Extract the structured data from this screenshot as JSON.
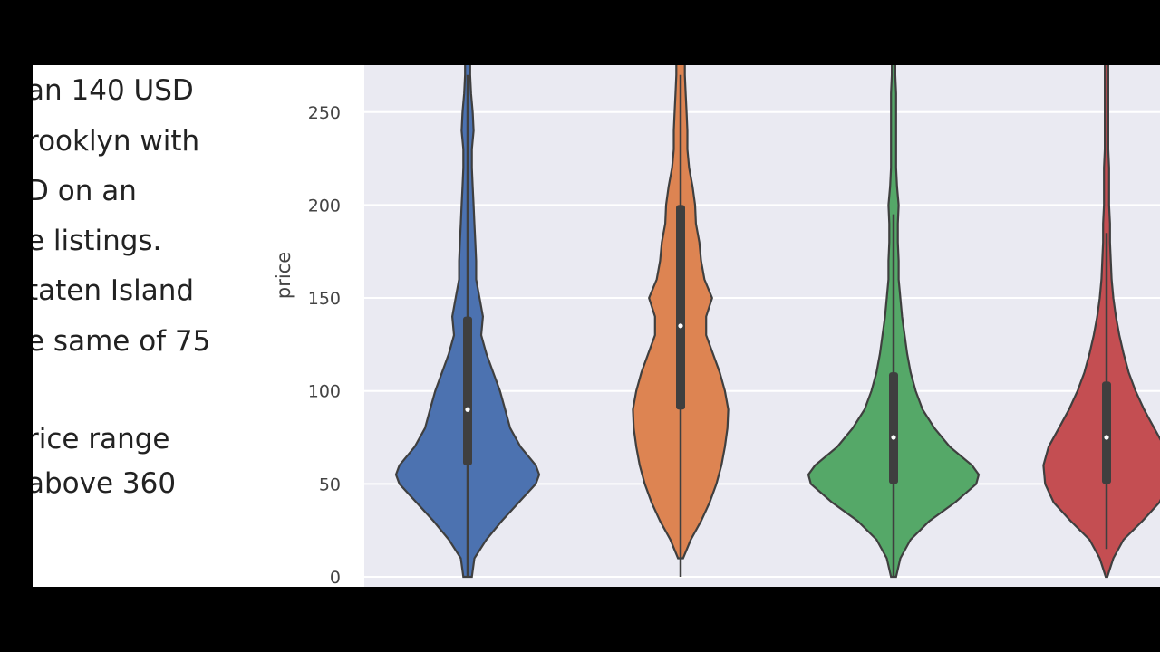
{
  "text_lines": [
    "an 140 USD",
    "rooklyn with",
    "D on an",
    "e listings.",
    "taten Island",
    "e same of 75",
    "",
    "rice range",
    "above 360"
  ],
  "colors": {
    "background": "#000000",
    "plot_background": "#eaeaf2",
    "grid": "#ffffff",
    "series": [
      "#4c72b0",
      "#dd8452",
      "#55a868",
      "#c44e52"
    ],
    "outline": "#3f3f3f"
  },
  "chart_data": {
    "type": "violin",
    "ylabel": "price",
    "yticks": [
      0,
      50,
      100,
      150,
      200,
      250
    ],
    "ylim": [
      0,
      260
    ],
    "grid": true,
    "series": [
      {
        "color": "#4c72b0",
        "median": 90,
        "q1": 60,
        "q3": 140,
        "whisker_low": 0,
        "whisker_high": 270,
        "density": [
          [
            0,
            0.05
          ],
          [
            10,
            0.08
          ],
          [
            20,
            0.22
          ],
          [
            30,
            0.4
          ],
          [
            40,
            0.6
          ],
          [
            50,
            0.8
          ],
          [
            55,
            0.84
          ],
          [
            60,
            0.8
          ],
          [
            70,
            0.62
          ],
          [
            80,
            0.5
          ],
          [
            90,
            0.44
          ],
          [
            100,
            0.38
          ],
          [
            110,
            0.3
          ],
          [
            120,
            0.22
          ],
          [
            130,
            0.16
          ],
          [
            140,
            0.18
          ],
          [
            150,
            0.14
          ],
          [
            160,
            0.1
          ],
          [
            170,
            0.1
          ],
          [
            180,
            0.09
          ],
          [
            190,
            0.08
          ],
          [
            200,
            0.07
          ],
          [
            210,
            0.06
          ],
          [
            220,
            0.05
          ],
          [
            230,
            0.05
          ],
          [
            240,
            0.07
          ],
          [
            250,
            0.06
          ],
          [
            260,
            0.04
          ],
          [
            270,
            0.03
          ]
        ]
      },
      {
        "color": "#dd8452",
        "median": 135,
        "q1": 90,
        "q3": 200,
        "whisker_low": 0,
        "whisker_high": 270,
        "density": [
          [
            10,
            0.03
          ],
          [
            20,
            0.12
          ],
          [
            30,
            0.24
          ],
          [
            40,
            0.34
          ],
          [
            50,
            0.42
          ],
          [
            60,
            0.48
          ],
          [
            70,
            0.52
          ],
          [
            80,
            0.55
          ],
          [
            90,
            0.56
          ],
          [
            100,
            0.52
          ],
          [
            110,
            0.46
          ],
          [
            120,
            0.38
          ],
          [
            130,
            0.3
          ],
          [
            140,
            0.3
          ],
          [
            150,
            0.37
          ],
          [
            160,
            0.28
          ],
          [
            170,
            0.24
          ],
          [
            180,
            0.22
          ],
          [
            190,
            0.18
          ],
          [
            200,
            0.17
          ],
          [
            210,
            0.14
          ],
          [
            220,
            0.1
          ],
          [
            230,
            0.08
          ],
          [
            240,
            0.08
          ],
          [
            250,
            0.07
          ],
          [
            260,
            0.06
          ],
          [
            270,
            0.05
          ]
        ]
      },
      {
        "color": "#55a868",
        "median": 75,
        "q1": 50,
        "q3": 110,
        "whisker_low": 0,
        "whisker_high": 195,
        "density": [
          [
            0,
            0.03
          ],
          [
            10,
            0.08
          ],
          [
            20,
            0.2
          ],
          [
            30,
            0.42
          ],
          [
            40,
            0.72
          ],
          [
            50,
            0.97
          ],
          [
            55,
            1.0
          ],
          [
            60,
            0.92
          ],
          [
            70,
            0.66
          ],
          [
            80,
            0.48
          ],
          [
            90,
            0.34
          ],
          [
            100,
            0.26
          ],
          [
            110,
            0.2
          ],
          [
            120,
            0.16
          ],
          [
            130,
            0.13
          ],
          [
            140,
            0.1
          ],
          [
            150,
            0.08
          ],
          [
            160,
            0.06
          ],
          [
            170,
            0.06
          ],
          [
            180,
            0.05
          ],
          [
            190,
            0.05
          ],
          [
            200,
            0.06
          ],
          [
            210,
            0.04
          ],
          [
            220,
            0.03
          ],
          [
            230,
            0.03
          ],
          [
            240,
            0.03
          ],
          [
            250,
            0.03
          ],
          [
            260,
            0.03
          ],
          [
            270,
            0.02
          ]
        ]
      },
      {
        "color": "#c44e52",
        "median": 75,
        "q1": 50,
        "q3": 105,
        "whisker_low": 15,
        "whisker_high": 185,
        "density": [
          [
            0,
            0.01
          ],
          [
            10,
            0.08
          ],
          [
            20,
            0.2
          ],
          [
            30,
            0.42
          ],
          [
            40,
            0.62
          ],
          [
            50,
            0.72
          ],
          [
            60,
            0.74
          ],
          [
            70,
            0.68
          ],
          [
            80,
            0.56
          ],
          [
            90,
            0.44
          ],
          [
            100,
            0.34
          ],
          [
            110,
            0.26
          ],
          [
            120,
            0.2
          ],
          [
            130,
            0.15
          ],
          [
            140,
            0.11
          ],
          [
            150,
            0.08
          ],
          [
            160,
            0.06
          ],
          [
            170,
            0.05
          ],
          [
            180,
            0.04
          ],
          [
            190,
            0.04
          ],
          [
            200,
            0.03
          ],
          [
            210,
            0.03
          ],
          [
            220,
            0.03
          ],
          [
            230,
            0.02
          ],
          [
            240,
            0.02
          ],
          [
            250,
            0.02
          ],
          [
            260,
            0.02
          ],
          [
            270,
            0.02
          ]
        ]
      }
    ]
  }
}
